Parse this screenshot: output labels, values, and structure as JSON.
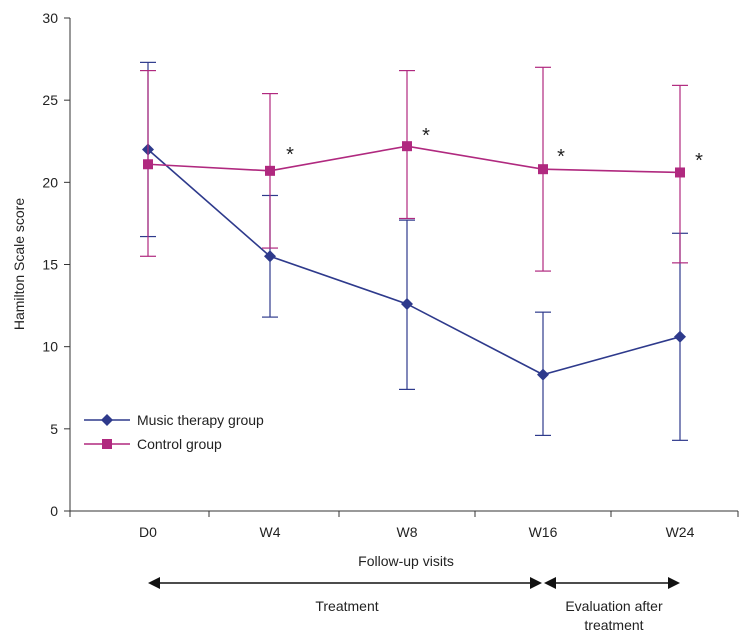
{
  "chart_data": {
    "type": "line",
    "xlabel": "Follow-up visits",
    "ylabel": "Hamilton Scale score",
    "categories": [
      "D0",
      "W4",
      "W8",
      "W16",
      "W24"
    ],
    "ylim": [
      0,
      30
    ],
    "yticks": [
      0,
      5,
      10,
      15,
      20,
      25,
      30
    ],
    "grid": false,
    "legend_position": "bottom-left",
    "series": [
      {
        "name": "Music therapy group",
        "marker": "diamond",
        "color": "#2e3a8c",
        "values": [
          22.0,
          15.5,
          12.6,
          8.3,
          10.6
        ],
        "error_upper": [
          27.3,
          19.2,
          17.7,
          12.1,
          16.9
        ],
        "error_lower": [
          16.7,
          11.8,
          7.4,
          4.6,
          4.3
        ]
      },
      {
        "name": "Control group",
        "marker": "square",
        "color": "#b0297f",
        "values": [
          21.1,
          20.7,
          22.2,
          20.8,
          20.6
        ],
        "error_upper": [
          26.8,
          25.4,
          26.8,
          27.0,
          25.9
        ],
        "error_lower": [
          15.5,
          16.0,
          17.8,
          14.6,
          15.1
        ]
      }
    ],
    "annotations": [
      {
        "text": "*",
        "category": "W4"
      },
      {
        "text": "*",
        "category": "W8"
      },
      {
        "text": "*",
        "category": "W16"
      },
      {
        "text": "*",
        "category": "W24"
      }
    ],
    "phases": [
      {
        "label": "Treatment",
        "from": "D0",
        "to": "W16"
      },
      {
        "label": "Evaluation after treatment",
        "from": "W16",
        "to": "W24"
      }
    ]
  }
}
